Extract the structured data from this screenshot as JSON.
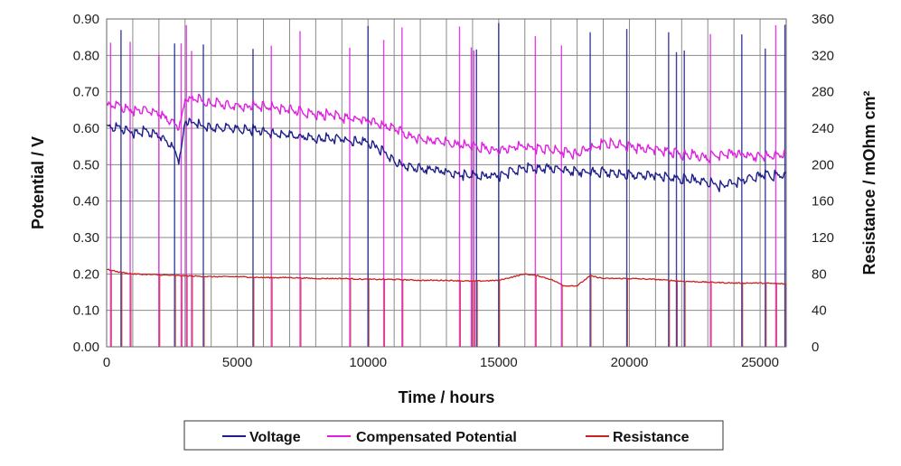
{
  "chart_data": {
    "type": "line",
    "xlabel": "Time / hours",
    "ylabel": "Potential / V",
    "y2label": "Resistance / mOhm cm²",
    "xlim": [
      0,
      26000
    ],
    "ylim": [
      0,
      0.9
    ],
    "y2lim": [
      0,
      360
    ],
    "xticks": [
      "0",
      "5000",
      "10000",
      "15000",
      "20000",
      "25000"
    ],
    "yticks": [
      "0.00",
      "0.10",
      "0.20",
      "0.30",
      "0.40",
      "0.50",
      "0.60",
      "0.70",
      "0.80",
      "0.90"
    ],
    "y2ticks": [
      "0",
      "40",
      "80",
      "120",
      "160",
      "200",
      "240",
      "280",
      "320",
      "360"
    ],
    "grid": true,
    "legend_position": "bottom",
    "colors": {
      "voltage": "#1f1f8c",
      "compensated": "#e020e0",
      "resistance": "#cc2020"
    },
    "series": [
      {
        "name": "Voltage",
        "axis": "left",
        "x": [
          0,
          500,
          1000,
          1500,
          2000,
          2500,
          2800,
          3000,
          3500,
          4000,
          5000,
          6000,
          7000,
          8000,
          9000,
          10000,
          10500,
          11000,
          11500,
          12000,
          13000,
          14000,
          15000,
          16000,
          17000,
          18000,
          19000,
          20000,
          21000,
          22000,
          23000,
          23500,
          24000,
          25000,
          26000
        ],
        "y": [
          0.6,
          0.6,
          0.59,
          0.59,
          0.58,
          0.55,
          0.51,
          0.62,
          0.61,
          0.6,
          0.6,
          0.59,
          0.58,
          0.57,
          0.57,
          0.56,
          0.54,
          0.51,
          0.49,
          0.49,
          0.48,
          0.47,
          0.47,
          0.49,
          0.49,
          0.48,
          0.48,
          0.47,
          0.47,
          0.46,
          0.45,
          0.44,
          0.45,
          0.47,
          0.47
        ]
      },
      {
        "name": "Compensated Potential",
        "axis": "left",
        "x": [
          0,
          500,
          1000,
          1500,
          2000,
          2500,
          2800,
          3000,
          3500,
          4000,
          5000,
          6000,
          7000,
          8000,
          9000,
          10000,
          10500,
          11000,
          11500,
          12000,
          13000,
          14000,
          15000,
          16000,
          17000,
          18000,
          19000,
          20000,
          21000,
          22000,
          23000,
          23500,
          24000,
          25000,
          26000
        ],
        "y": [
          0.66,
          0.66,
          0.65,
          0.65,
          0.64,
          0.62,
          0.6,
          0.68,
          0.68,
          0.67,
          0.66,
          0.66,
          0.65,
          0.64,
          0.63,
          0.62,
          0.61,
          0.6,
          0.58,
          0.57,
          0.56,
          0.55,
          0.54,
          0.55,
          0.54,
          0.53,
          0.56,
          0.55,
          0.54,
          0.53,
          0.52,
          0.53,
          0.53,
          0.52,
          0.53
        ]
      },
      {
        "name": "Resistance",
        "axis": "right",
        "x": [
          0,
          500,
          1000,
          2000,
          3000,
          4000,
          5000,
          6000,
          7000,
          8000,
          9000,
          10000,
          11000,
          12000,
          13000,
          14000,
          15000,
          16000,
          16500,
          17000,
          17500,
          18000,
          18500,
          19000,
          20000,
          21000,
          22000,
          23000,
          24000,
          25000,
          26000
        ],
        "y": [
          85,
          82,
          80,
          79,
          78,
          77,
          77,
          76,
          76,
          75,
          75,
          74,
          74,
          73,
          73,
          72,
          73,
          80,
          78,
          74,
          67,
          67,
          78,
          75,
          75,
          74,
          72,
          71,
          70,
          70,
          69
        ]
      }
    ]
  }
}
